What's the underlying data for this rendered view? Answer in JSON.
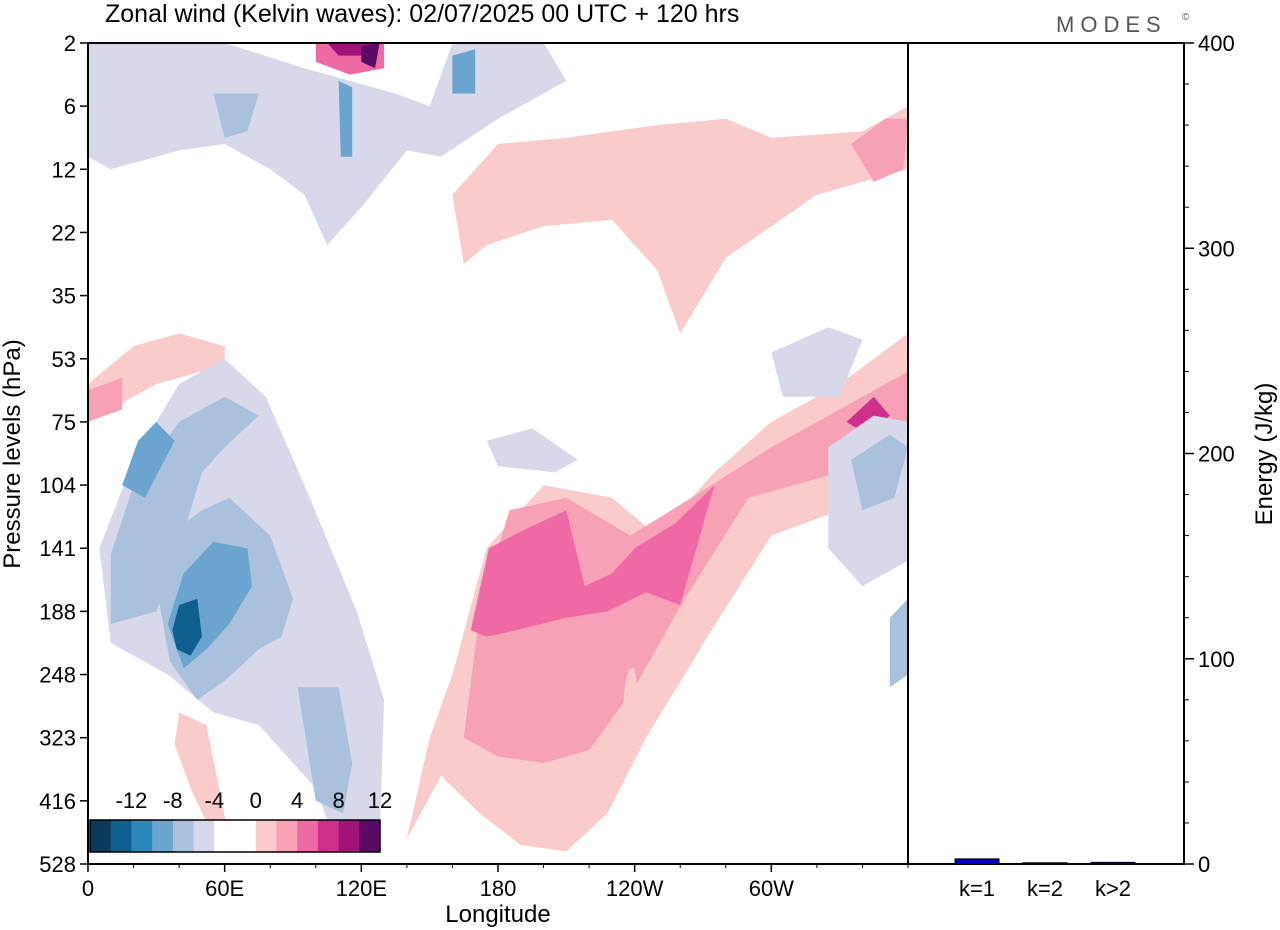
{
  "title": "Zonal wind (Kelvin waves):  02/07/2025  00 UTC  + 120 hrs",
  "brand": "MODES",
  "brand_mark": "©",
  "chart_data": [
    {
      "type": "heatmap",
      "title": "Zonal wind (Kelvin waves):  02/07/2025  00 UTC  + 120 hrs",
      "xlabel": "Longitude",
      "ylabel": "Pressure levels (hPa)",
      "x_ticks": [
        "0",
        "60E",
        "120E",
        "180",
        "120W",
        "60W"
      ],
      "x_tick_values": [
        0,
        60,
        120,
        180,
        240,
        300
      ],
      "xlim": [
        0,
        360
      ],
      "y_ticks": [
        "2",
        "6",
        "12",
        "22",
        "35",
        "53",
        "75",
        "104",
        "141",
        "188",
        "248",
        "323",
        "416",
        "528"
      ],
      "y_scale": "pressure levels (non-linear)",
      "colorbar": {
        "labels": [
          "-12",
          "-8",
          "-4",
          "0",
          "4",
          "8",
          "12"
        ],
        "colors": [
          "#0d3a5a",
          "#0e5f8e",
          "#2d86ba",
          "#6aa4cf",
          "#a9c1dd",
          "#d7d8e9",
          "#ffffff",
          "#ffffff",
          "#f9cbcb",
          "#f7a1b6",
          "#ef6aa4",
          "#cf2f8b",
          "#a01479",
          "#5a0a64"
        ]
      },
      "grid": false,
      "features": [
        {
          "sign": "positive",
          "region": "around 180 to 120W, 104-248 hPa",
          "peak": 8
        },
        {
          "sign": "positive",
          "region": "60W to 0, 53-104 hPa",
          "peak": 8
        },
        {
          "sign": "negative",
          "region": "around 45E-70E, 141-248 hPa",
          "peak": -12
        },
        {
          "sign": "positive",
          "region": "100E-130E, 2 hPa",
          "peak": 12
        }
      ]
    },
    {
      "type": "bar",
      "categories": [
        "k=1",
        "k=2",
        "k>2"
      ],
      "values": [
        2.5,
        0.6,
        0.8
      ],
      "ylabel": "Energy (J/kg)",
      "ylim": [
        0,
        400
      ],
      "y_ticks": [
        "0",
        "100",
        "200",
        "300",
        "400"
      ],
      "bar_color": "#0000cc"
    }
  ]
}
